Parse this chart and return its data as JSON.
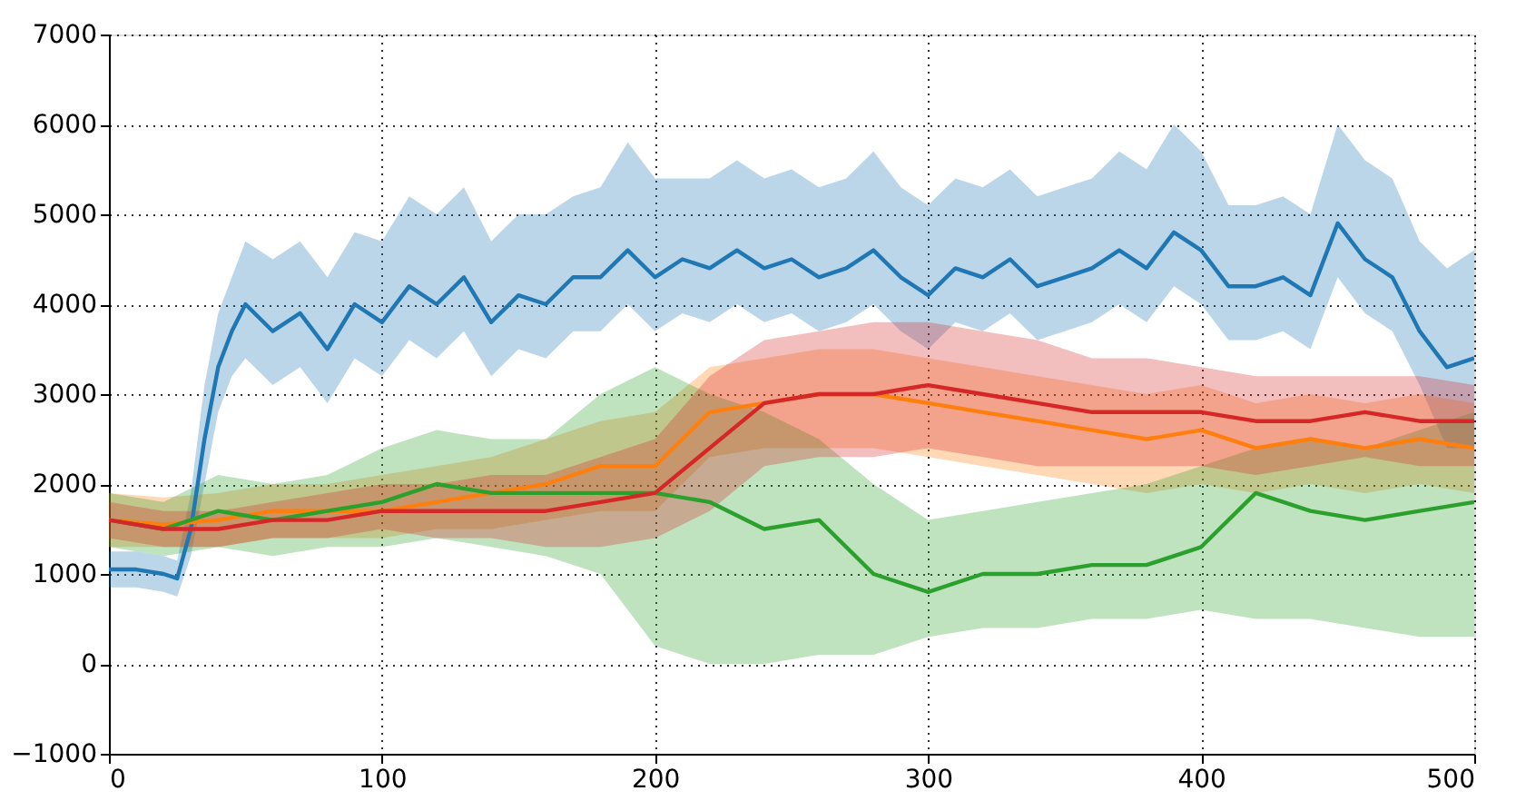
{
  "chart_data": {
    "type": "line",
    "xlim": [
      0,
      500
    ],
    "xticks": [
      0,
      100,
      200,
      300,
      400,
      500
    ],
    "ylim": [
      -1000,
      7000
    ],
    "yticks": [
      -1000,
      0,
      1000,
      2000,
      3000,
      4000,
      5000,
      6000,
      7000
    ],
    "grid": true,
    "marker": "none",
    "line_style": "solid",
    "series": [
      {
        "color": "#1f77b4",
        "x": [
          0,
          10,
          20,
          25,
          30,
          35,
          40,
          45,
          50,
          60,
          70,
          80,
          90,
          100,
          110,
          120,
          130,
          140,
          150,
          160,
          170,
          180,
          190,
          200,
          210,
          220,
          230,
          240,
          250,
          260,
          270,
          280,
          290,
          300,
          310,
          320,
          330,
          340,
          350,
          360,
          370,
          380,
          390,
          400,
          410,
          420,
          430,
          440,
          450,
          460,
          470,
          480,
          490,
          500
        ],
        "values": [
          1050,
          1050,
          1000,
          950,
          1500,
          2500,
          3300,
          3700,
          4000,
          3700,
          3900,
          3500,
          4000,
          3800,
          4200,
          4000,
          4300,
          3800,
          4100,
          4000,
          4300,
          4300,
          4600,
          4300,
          4500,
          4400,
          4600,
          4400,
          4500,
          4300,
          4400,
          4600,
          4300,
          4100,
          4400,
          4300,
          4500,
          4200,
          4300,
          4400,
          4600,
          4400,
          4800,
          4600,
          4200,
          4200,
          4300,
          4100,
          4900,
          4500,
          4300,
          3700,
          3300,
          3400
        ],
        "lower": [
          850,
          850,
          800,
          750,
          1200,
          2000,
          2800,
          3200,
          3400,
          3100,
          3300,
          2900,
          3400,
          3200,
          3600,
          3400,
          3700,
          3200,
          3500,
          3400,
          3700,
          3700,
          4000,
          3700,
          3900,
          3800,
          4000,
          3800,
          3900,
          3700,
          3800,
          4000,
          3700,
          3500,
          3800,
          3700,
          3900,
          3600,
          3700,
          3800,
          4000,
          3800,
          4200,
          4000,
          3600,
          3600,
          3700,
          3500,
          4300,
          3900,
          3700,
          3100,
          2400,
          2400
        ],
        "upper": [
          1250,
          1250,
          1200,
          1150,
          1900,
          3100,
          3900,
          4300,
          4700,
          4500,
          4700,
          4300,
          4800,
          4700,
          5200,
          5000,
          5300,
          4700,
          5000,
          5000,
          5200,
          5300,
          5800,
          5400,
          5400,
          5400,
          5600,
          5400,
          5500,
          5300,
          5400,
          5700,
          5300,
          5100,
          5400,
          5300,
          5500,
          5200,
          5300,
          5400,
          5700,
          5500,
          6000,
          5700,
          5100,
          5100,
          5200,
          5000,
          6000,
          5600,
          5400,
          4700,
          4400,
          4600
        ]
      },
      {
        "color": "#ff7f0e",
        "x": [
          0,
          20,
          40,
          60,
          80,
          100,
          120,
          140,
          160,
          180,
          200,
          220,
          240,
          260,
          280,
          300,
          320,
          340,
          360,
          380,
          400,
          420,
          440,
          460,
          480,
          500
        ],
        "values": [
          1600,
          1550,
          1600,
          1700,
          1700,
          1700,
          1800,
          1900,
          2000,
          2200,
          2200,
          2800,
          2900,
          3000,
          3000,
          2900,
          2800,
          2700,
          2600,
          2500,
          2600,
          2400,
          2500,
          2400,
          2500,
          2400
        ],
        "lower": [
          1300,
          1300,
          1300,
          1400,
          1400,
          1400,
          1500,
          1500,
          1600,
          1700,
          1700,
          2300,
          2400,
          2400,
          2400,
          2300,
          2200,
          2100,
          2000,
          1900,
          2000,
          1900,
          2000,
          1900,
          2000,
          1900
        ],
        "upper": [
          1900,
          1850,
          1900,
          2000,
          2000,
          2100,
          2200,
          2300,
          2500,
          2700,
          2800,
          3300,
          3400,
          3500,
          3500,
          3400,
          3300,
          3200,
          3100,
          3000,
          3100,
          2900,
          3000,
          2900,
          3000,
          2900
        ]
      },
      {
        "color": "#2ca02c",
        "x": [
          0,
          20,
          40,
          60,
          80,
          100,
          120,
          140,
          160,
          180,
          200,
          220,
          240,
          260,
          280,
          300,
          320,
          340,
          360,
          380,
          400,
          420,
          440,
          460,
          480,
          500
        ],
        "values": [
          1600,
          1500,
          1700,
          1600,
          1700,
          1800,
          2000,
          1900,
          1900,
          1900,
          1900,
          1800,
          1500,
          1600,
          1000,
          800,
          1000,
          1000,
          1100,
          1100,
          1300,
          1900,
          1700,
          1600,
          1700,
          1800
        ],
        "lower": [
          1300,
          1200,
          1300,
          1200,
          1300,
          1300,
          1400,
          1300,
          1200,
          1000,
          200,
          0,
          0,
          100,
          100,
          300,
          400,
          400,
          500,
          500,
          600,
          500,
          500,
          400,
          300,
          300
        ],
        "upper": [
          1900,
          1800,
          2100,
          2000,
          2100,
          2400,
          2600,
          2500,
          2500,
          3000,
          3300,
          3000,
          2800,
          2500,
          2000,
          1600,
          1700,
          1800,
          1900,
          2000,
          2200,
          2400,
          2500,
          2400,
          2600,
          2800
        ]
      },
      {
        "color": "#d62728",
        "x": [
          0,
          20,
          40,
          60,
          80,
          100,
          120,
          140,
          160,
          180,
          200,
          220,
          240,
          260,
          280,
          300,
          320,
          340,
          360,
          380,
          400,
          420,
          440,
          460,
          480,
          500
        ],
        "values": [
          1600,
          1500,
          1500,
          1600,
          1600,
          1700,
          1700,
          1700,
          1700,
          1800,
          1900,
          2400,
          2900,
          3000,
          3000,
          3100,
          3000,
          2900,
          2800,
          2800,
          2800,
          2700,
          2700,
          2800,
          2700,
          2700
        ],
        "lower": [
          1400,
          1300,
          1300,
          1400,
          1400,
          1500,
          1400,
          1400,
          1300,
          1300,
          1400,
          1700,
          2200,
          2300,
          2300,
          2400,
          2300,
          2200,
          2200,
          2200,
          2200,
          2100,
          2200,
          2300,
          2200,
          2200
        ],
        "upper": [
          1800,
          1700,
          1700,
          1800,
          1900,
          2000,
          2000,
          2100,
          2100,
          2300,
          2500,
          3200,
          3600,
          3700,
          3800,
          3800,
          3700,
          3600,
          3400,
          3400,
          3300,
          3200,
          3200,
          3200,
          3200,
          3100
        ]
      }
    ]
  }
}
